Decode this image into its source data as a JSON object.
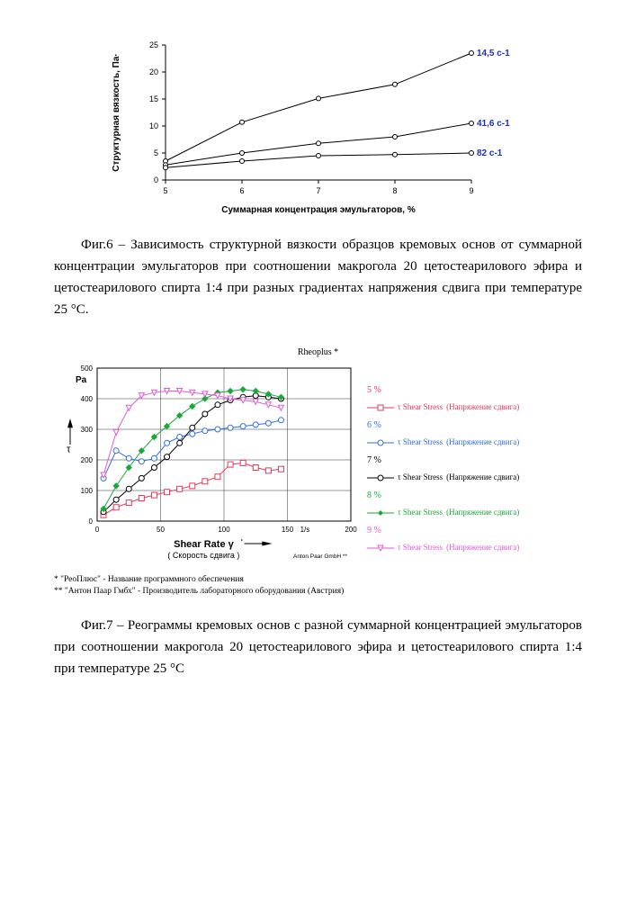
{
  "chart1": {
    "type": "line",
    "title": "",
    "xlabel": "Суммарная концентрация эмульгаторов, %",
    "ylabel": "Структурная вязкость, Па·",
    "xlim": [
      5,
      9
    ],
    "ylim": [
      0,
      25
    ],
    "xtick_step": 1,
    "ytick_step": 5,
    "background_color": "#ffffff",
    "axis_color": "#000000",
    "marker": "circle-open",
    "marker_size": 5,
    "line_color": "#000000",
    "line_width": 1,
    "label_fontsize": 10,
    "tick_fontsize": 9,
    "series": [
      {
        "label": "14,5 с-1",
        "x": [
          5,
          6,
          7,
          8,
          9
        ],
        "y": [
          3.5,
          10.7,
          15.1,
          17.7,
          23.5
        ]
      },
      {
        "label": "41,6 с-1",
        "x": [
          5,
          6,
          7,
          8,
          9
        ],
        "y": [
          2.8,
          5.0,
          6.8,
          8.0,
          10.5
        ]
      },
      {
        "label": "82 с-1",
        "x": [
          5,
          6,
          7,
          8,
          9
        ],
        "y": [
          2.3,
          3.5,
          4.5,
          4.7,
          5.0
        ]
      }
    ],
    "series_label_color": "#1a2fbf"
  },
  "caption1": "Фиг.6 – Зависимость структурной вязкости образцов кремовых основ от суммарной концентрации эмульгаторов при соотношении макрогола 20 цетостеарилового эфира и цетостеарилового спирта 1:4 при разных градиентах напряжения сдвига при температуре 25 °С.",
  "chart2": {
    "type": "line-scatter",
    "title": "Rheoplus *",
    "xlabel": "Shear Rate γ",
    "xlabel_sub": "( Скорость сдвига )",
    "ylabel_unit": "Pa",
    "ylabel_sym": "τ",
    "xlim": [
      0,
      200
    ],
    "ylim": [
      0,
      500
    ],
    "xtick_step": 50,
    "ytick_step": 100,
    "x_unit_label": "1/s",
    "background_color": "#ffffff",
    "grid_color": "#000000",
    "grid_width": 0.4,
    "axis_color": "#000000",
    "label_fontsize": 10,
    "tick_fontsize": 8,
    "footer_right": "Anton Paar GmbH **",
    "series": [
      {
        "pct": "5 %",
        "label": "τ   Shear Stress",
        "label_ru": "(Напряжение сдвига)",
        "color": "#e03a5c",
        "marker": "square-open",
        "x": [
          5,
          15,
          25,
          35,
          45,
          55,
          65,
          75,
          85,
          95,
          105,
          115,
          125,
          135,
          145
        ],
        "y": [
          20,
          45,
          60,
          75,
          85,
          95,
          105,
          115,
          130,
          145,
          185,
          190,
          175,
          165,
          170
        ]
      },
      {
        "pct": "6 %",
        "label": "τ   Shear Stress",
        "label_ru": "(Напряжение сдвига)",
        "color": "#2f6fe0",
        "marker": "circle-open",
        "x": [
          5,
          15,
          25,
          35,
          45,
          55,
          65,
          75,
          85,
          95,
          105,
          115,
          125,
          135,
          145
        ],
        "y": [
          140,
          230,
          205,
          195,
          205,
          255,
          275,
          285,
          295,
          300,
          305,
          310,
          315,
          320,
          330
        ]
      },
      {
        "pct": "7 %",
        "label": "τ   Shear Stress",
        "label_ru": "(Напряжение сдвига)",
        "color": "#000000",
        "marker": "circle-open",
        "x": [
          5,
          15,
          25,
          35,
          45,
          55,
          65,
          75,
          85,
          95,
          105,
          115,
          125,
          135,
          145
        ],
        "y": [
          30,
          70,
          105,
          140,
          175,
          210,
          255,
          305,
          350,
          380,
          395,
          405,
          410,
          405,
          400
        ]
      },
      {
        "pct": "8 %",
        "label": "τ   Shear Stress",
        "label_ru": "(Напряжение сдвига)",
        "color": "#1aa83a",
        "marker": "diamond-filled",
        "x": [
          5,
          15,
          25,
          35,
          45,
          55,
          65,
          75,
          85,
          95,
          105,
          115,
          125,
          135,
          145
        ],
        "y": [
          40,
          115,
          175,
          230,
          275,
          310,
          345,
          375,
          400,
          420,
          425,
          430,
          425,
          415,
          405
        ]
      },
      {
        "pct": "9 %",
        "label": "τ   Shear Stress",
        "label_ru": "(Напряжение сдвига)",
        "color": "#e05ad6",
        "marker": "triangle-open",
        "x": [
          5,
          15,
          25,
          35,
          45,
          55,
          65,
          75,
          85,
          95,
          105,
          115,
          125,
          135,
          145
        ],
        "y": [
          150,
          290,
          370,
          410,
          420,
          425,
          425,
          420,
          415,
          410,
          400,
          395,
          390,
          380,
          370
        ]
      }
    ]
  },
  "footnotes": {
    "a": "* \"РеоПлюс\" - Название программного обеспечения",
    "b": "** \"Антон Паар Гмбх\" - Производитель лабораторного оборудования (Австрия)"
  },
  "caption2": "Фиг.7 – Реограммы кремовых основ с разной суммарной концентрацией эмульгаторов при соотношении макрогола 20 цетостеарилового эфира и цетостеарилового спирта 1:4 при температуре 25 °С"
}
